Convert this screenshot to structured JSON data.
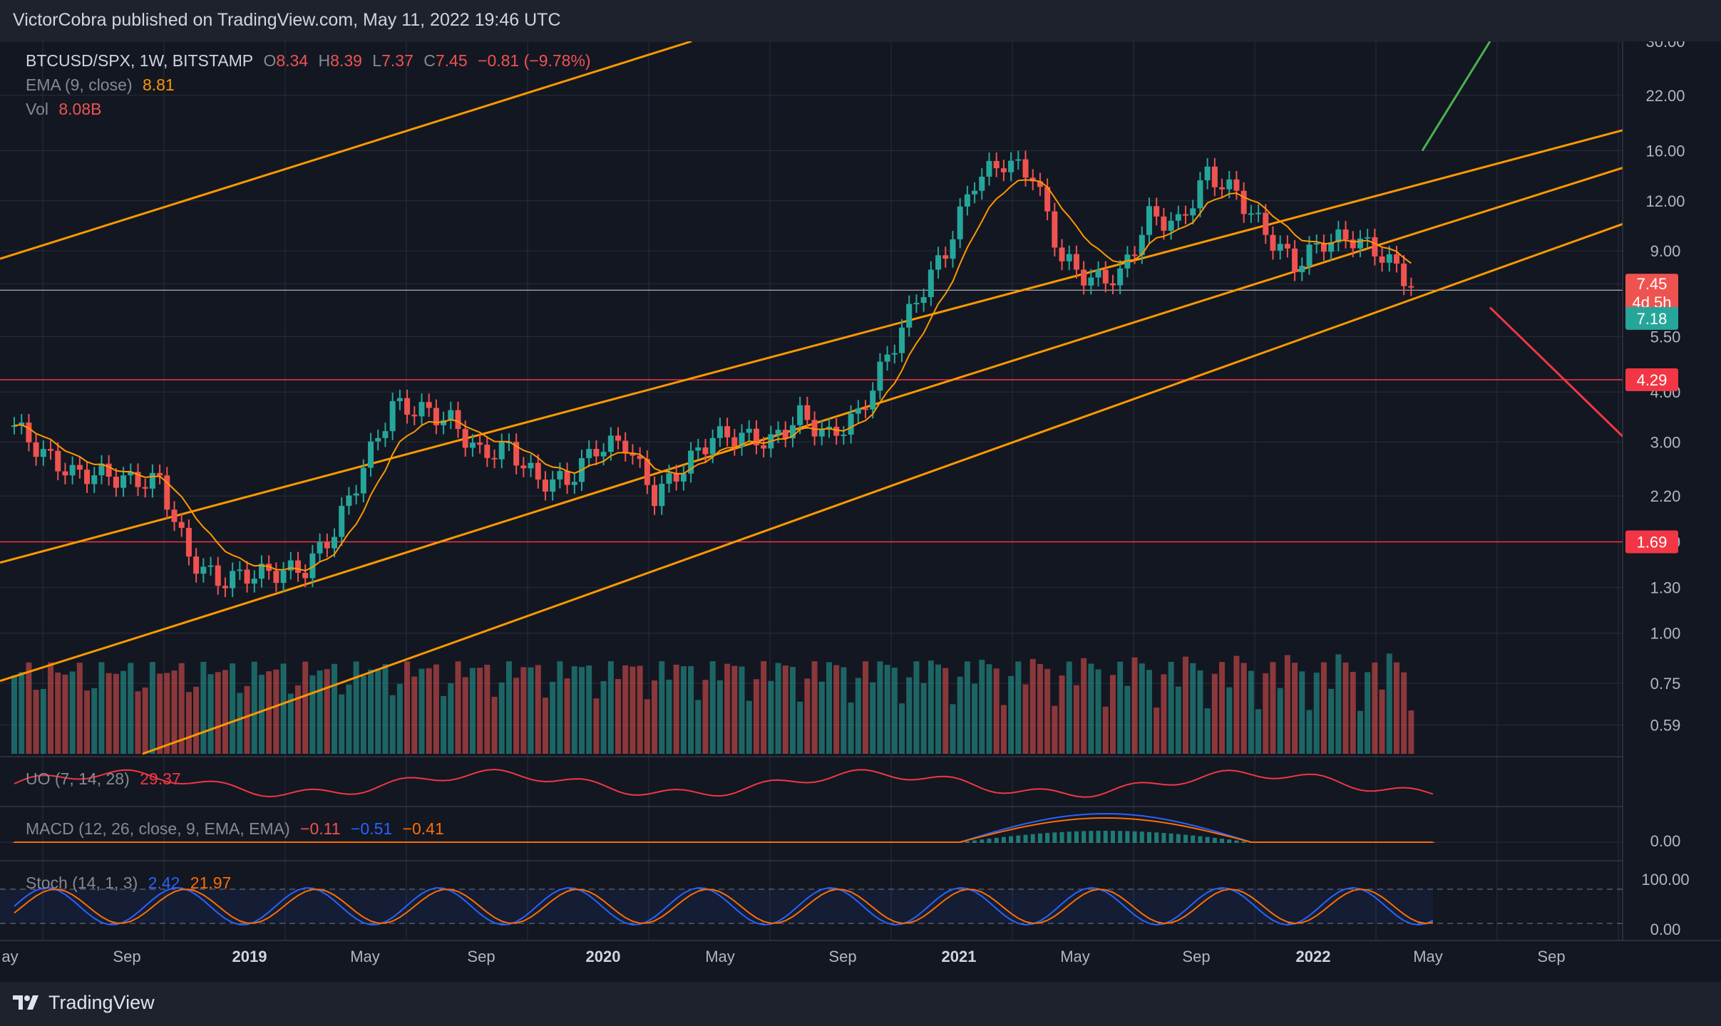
{
  "header": {
    "title": "VictorCobra published on TradingView.com, May 11, 2022 19:46 UTC"
  },
  "footer": {
    "brand": "TradingView"
  },
  "legend": {
    "symbol": "BTCUSD/SPX, 1W, BITSTAMP",
    "open_label": "O",
    "open": "8.34",
    "high_label": "H",
    "high": "8.39",
    "low_label": "L",
    "low": "7.37",
    "close_label": "C",
    "close": "7.45",
    "change": "−0.81 (−9.78%)",
    "ema_label": "EMA (9, close)",
    "ema_value": "8.81",
    "vol_label": "Vol",
    "vol_value": "8.08B"
  },
  "indicators": {
    "uo_label": "UO (7, 14, 28)",
    "uo_value": "29.37",
    "macd_label": "MACD (12, 26, close, 9, EMA, EMA)",
    "macd_hist": "−0.11",
    "macd_line": "−0.51",
    "macd_signal": "−0.41",
    "stoch_label": "Stoch (14, 1, 3)",
    "stoch_k": "2.42",
    "stoch_d": "21.97"
  },
  "colors": {
    "up": "#26a69a",
    "down": "#ef5350",
    "channel": "#ff9800",
    "hline": "#f23645",
    "ema": "#ff9800",
    "green_arrow": "#4caf50",
    "macd": "#2962ff",
    "signal": "#ff6d00",
    "uo": "#f23645"
  },
  "chart_data": {
    "type": "candlestick",
    "title": "BTCUSD/SPX, 1W, BITSTAMP",
    "y_scale": "log",
    "ylim": [
      0.5,
      30
    ],
    "price_axis_ticks": [
      "30.00",
      "22.00",
      "16.00",
      "12.00",
      "9.00",
      "7.45",
      "5.50",
      "4.00",
      "3.00",
      "2.20",
      "1.69",
      "1.30",
      "1.00",
      "0.75",
      "0.59"
    ],
    "time_axis_labels": [
      "ay",
      "Sep",
      "2019",
      "May",
      "Sep",
      "2020",
      "May",
      "Sep",
      "2021",
      "May",
      "Sep",
      "2022",
      "May",
      "Sep"
    ],
    "last_price": "7.45",
    "countdown": "4d 5h",
    "price_labels": {
      "previous_level": "7.18",
      "upper_level": "4.29",
      "lower_level": "1.69"
    },
    "horizontal_levels": [
      4.29,
      1.69,
      7.18
    ],
    "weekly_close_path": [
      {
        "t": "2018-05",
        "v": 3.3
      },
      {
        "t": "2018-06",
        "v": 2.8
      },
      {
        "t": "2018-07",
        "v": 2.5
      },
      {
        "t": "2018-08",
        "v": 2.5
      },
      {
        "t": "2018-09",
        "v": 2.4
      },
      {
        "t": "2018-10",
        "v": 2.4
      },
      {
        "t": "2018-11",
        "v": 1.55
      },
      {
        "t": "2018-12",
        "v": 1.35
      },
      {
        "t": "2019-01",
        "v": 1.4
      },
      {
        "t": "2019-02",
        "v": 1.42
      },
      {
        "t": "2019-03",
        "v": 1.45
      },
      {
        "t": "2019-04",
        "v": 1.8
      },
      {
        "t": "2019-05",
        "v": 2.6
      },
      {
        "t": "2019-06",
        "v": 3.7
      },
      {
        "t": "2019-07",
        "v": 3.6
      },
      {
        "t": "2019-08",
        "v": 3.4
      },
      {
        "t": "2019-09",
        "v": 2.8
      },
      {
        "t": "2019-10",
        "v": 2.9
      },
      {
        "t": "2019-11",
        "v": 2.4
      },
      {
        "t": "2019-12",
        "v": 2.4
      },
      {
        "t": "2020-01",
        "v": 2.9
      },
      {
        "t": "2020-02",
        "v": 3.0
      },
      {
        "t": "2020-03",
        "v": 2.2
      },
      {
        "t": "2020-04",
        "v": 2.6
      },
      {
        "t": "2020-05",
        "v": 3.1
      },
      {
        "t": "2020-06",
        "v": 3.1
      },
      {
        "t": "2020-07",
        "v": 3.0
      },
      {
        "t": "2020-08",
        "v": 3.5
      },
      {
        "t": "2020-09",
        "v": 3.1
      },
      {
        "t": "2020-10",
        "v": 3.5
      },
      {
        "t": "2020-11",
        "v": 4.9
      },
      {
        "t": "2020-12",
        "v": 6.8
      },
      {
        "t": "2021-01",
        "v": 9.0
      },
      {
        "t": "2021-02",
        "v": 13.5
      },
      {
        "t": "2021-03",
        "v": 15.0
      },
      {
        "t": "2021-04",
        "v": 14.0
      },
      {
        "t": "2021-05",
        "v": 8.6
      },
      {
        "t": "2021-06",
        "v": 7.6
      },
      {
        "t": "2021-07",
        "v": 7.8
      },
      {
        "t": "2021-08",
        "v": 11.0
      },
      {
        "t": "2021-09",
        "v": 10.5
      },
      {
        "t": "2021-10",
        "v": 14.0
      },
      {
        "t": "2021-11",
        "v": 12.5
      },
      {
        "t": "2021-12",
        "v": 10.0
      },
      {
        "t": "2022-01",
        "v": 8.3
      },
      {
        "t": "2022-02",
        "v": 9.5
      },
      {
        "t": "2022-03",
        "v": 9.7
      },
      {
        "t": "2022-04",
        "v": 8.8
      },
      {
        "t": "2022-05",
        "v": 7.45
      }
    ],
    "uo": {
      "label": "UO (7, 14, 28)",
      "last": 29.37,
      "range": [
        0,
        100
      ]
    },
    "macd": {
      "label": "MACD (12, 26, close, 9, EMA, EMA)",
      "histogram": -0.11,
      "macd": -0.51,
      "signal": -0.41,
      "ticks": [
        "0.00"
      ]
    },
    "stoch": {
      "label": "Stoch (14, 1, 3)",
      "k": 2.42,
      "d": 21.97,
      "ticks": [
        "100.00",
        "0.00"
      ]
    }
  }
}
